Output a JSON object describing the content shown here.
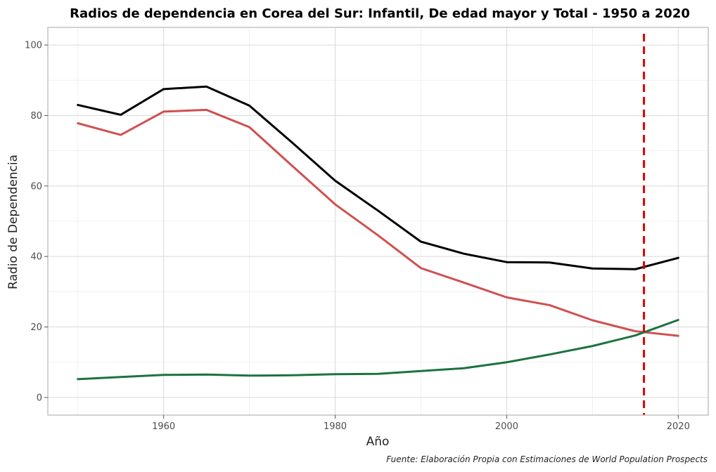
{
  "chart_data": {
    "type": "line",
    "title": "Radios de dependencia en Corea del Sur: Infantil, De edad mayor y Total - 1950 a 2020",
    "xlabel": "Año",
    "ylabel": "Radio de Dependencia",
    "caption": "Fuente: Elaboración Propia con Estimaciones de World Population Prospects",
    "xlim": [
      1946.5,
      2023.5
    ],
    "ylim": [
      -5,
      105
    ],
    "xticks": [
      1960,
      1980,
      2000,
      2020
    ],
    "yticks": [
      0,
      20,
      40,
      60,
      80,
      100
    ],
    "grid": true,
    "legend": "none",
    "x": [
      1950,
      1955,
      1960,
      1965,
      1970,
      1975,
      1980,
      1985,
      1990,
      1995,
      2000,
      2005,
      2010,
      2015,
      2020
    ],
    "series": [
      {
        "color": "#000000",
        "values": [
          83,
          80.2,
          87.5,
          88.2,
          82.8,
          72.3,
          61.5,
          53,
          44.2,
          40.8,
          38.4,
          38.3,
          36.6,
          36.4,
          39.6
        ]
      },
      {
        "color": "#d0504f",
        "values": [
          77.8,
          74.5,
          81.1,
          81.6,
          76.7,
          65.7,
          54.8,
          46,
          36.7,
          32.6,
          28.4,
          26.2,
          21.9,
          18.8,
          17.5
        ]
      },
      {
        "color": "#1a7340",
        "values": [
          5.2,
          5.8,
          6.4,
          6.5,
          6.2,
          6.3,
          6.6,
          6.7,
          7.5,
          8.3,
          10,
          12.2,
          14.6,
          17.6,
          22
        ]
      }
    ],
    "reference_line": {
      "x": 2016,
      "color": "#e00000",
      "style": "dashed"
    }
  }
}
